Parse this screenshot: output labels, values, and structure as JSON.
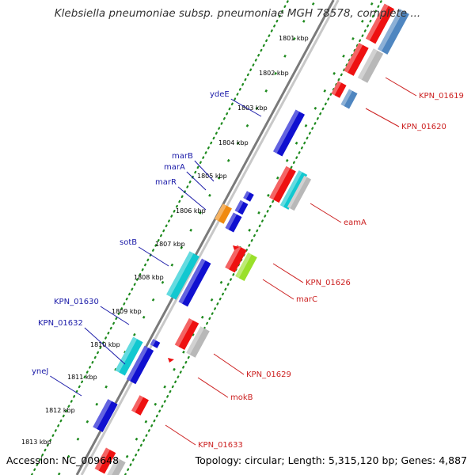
{
  "title": "Klebsiella pneumoniae subsp. pneumoniae MGH 78578, complete ...",
  "footer": {
    "accession": "Accession: NC_009648",
    "topology": "Topology: circular; Length: 5,315,120 bp; Genes: 4,887"
  },
  "colors": {
    "red": "#ee1111",
    "blue": "#1010d0",
    "cyan": "#11c8d0",
    "grey": "#b8b8b8",
    "steelblue": "#4f86c0",
    "orange": "#f08a10",
    "lime": "#9ae02a",
    "backbone": "#7a7a7a",
    "dotted_track": "#1e8a1e",
    "label_left": "#1a1aa8",
    "label_right": "#cc1f1f"
  },
  "scale": {
    "ticks": [
      "1801 kbp",
      "1802 kbp",
      "1803 kbp",
      "1804 kbp",
      "1805 kbp",
      "1806 kbp",
      "1807 kbp",
      "1808 kbp",
      "1809 kbp",
      "1810 kbp",
      "1811 kbp",
      "1812 kbp",
      "1813 kbp"
    ]
  },
  "gene_labels_left": [
    "ydeE",
    "marB",
    "marA",
    "marR",
    "sotB",
    "KPN_01630",
    "KPN_01632",
    "yneJ"
  ],
  "gene_labels_right": [
    "KPN_01619",
    "KPN_01620",
    "eamA",
    "KPN_01626",
    "marC",
    "KPN_01629",
    "mokB",
    "KPN_01633"
  ]
}
